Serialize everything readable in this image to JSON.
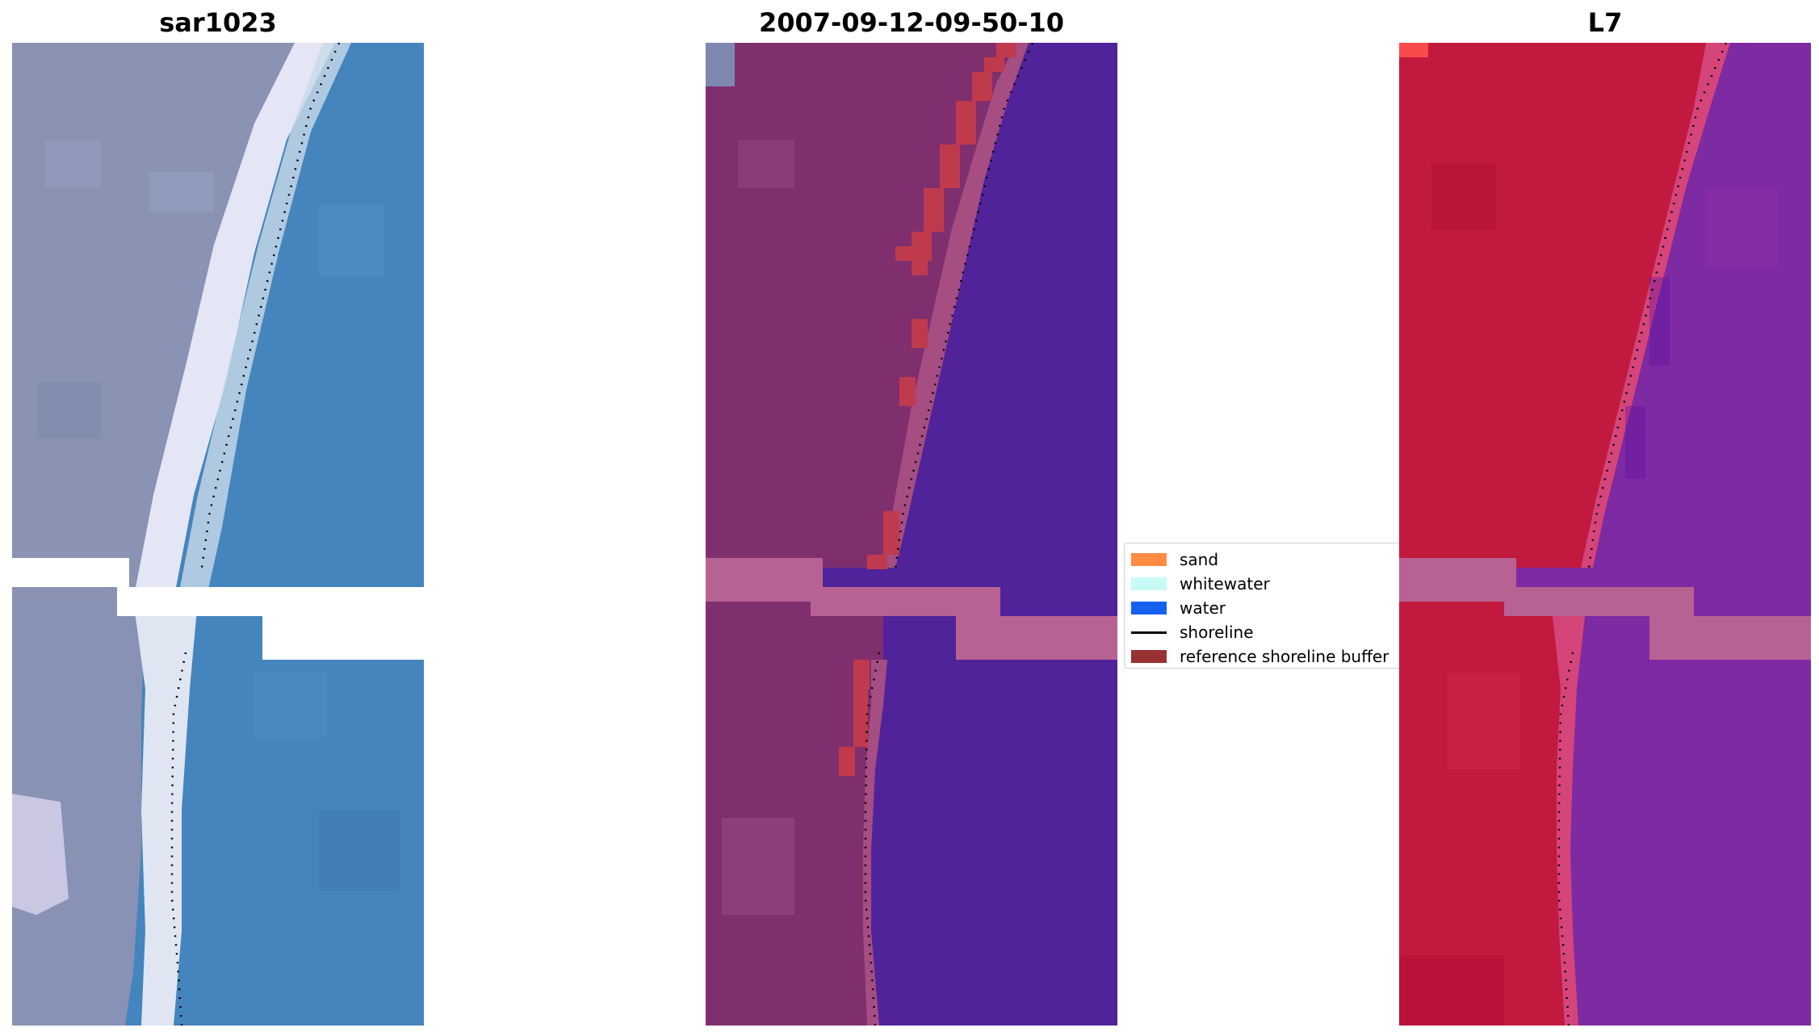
{
  "panels": [
    {
      "title": "sar1023"
    },
    {
      "title": "2007-09-12-09-50-10"
    },
    {
      "title": "L7"
    }
  ],
  "legend": {
    "items": [
      {
        "label": "sand",
        "color": "#ff8c42",
        "kind": "patch"
      },
      {
        "label": "whitewater",
        "color": "#c8fbf8",
        "kind": "patch"
      },
      {
        "label": "water",
        "color": "#1660f0",
        "kind": "patch"
      },
      {
        "label": "shoreline",
        "color": "#000000",
        "kind": "line"
      },
      {
        "label": "reference shoreline buffer",
        "color": "#983232",
        "kind": "patch"
      }
    ]
  },
  "colors": {
    "rgb_land": "#8792b4",
    "rgb_surf": "#e8eaf6",
    "rgb_water": "#4486bd",
    "class_land": "#7f2f6e",
    "class_edge": "#a64d82",
    "class_buffer": "#c03a4d",
    "class_water": "#50239b",
    "nodata_band": "#b86294",
    "fc_land": "#c2193e",
    "fc_edge": "#d5457a",
    "fc_water": "#7f29a1",
    "shoreline": "#000000"
  }
}
